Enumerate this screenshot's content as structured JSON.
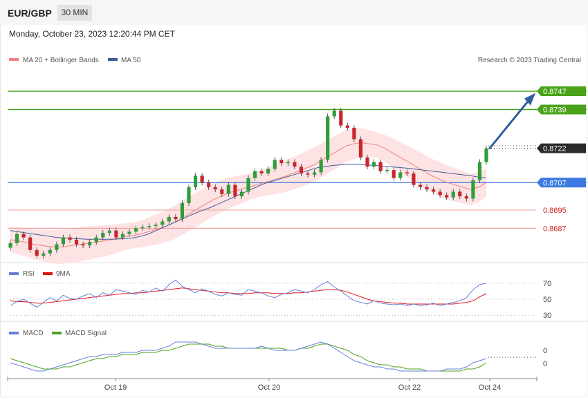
{
  "header": {
    "symbol": "EUR/GBP",
    "timeframe": "30 MIN",
    "timestamp": "Monday, October 23, 2023 12:20:44 PM CET"
  },
  "legend": {
    "ma20": "MA 20 + Bollinger Bands",
    "ma50": "MA 50",
    "copyright": "Research © 2023 Trading Central"
  },
  "colors": {
    "candle_up": "#2f9d3a",
    "candle_down": "#c9252b",
    "ma20": "#f08080",
    "bollinger_fill": "#fde0e0",
    "ma50": "#3f5c9a",
    "resistance": "#4aa31a",
    "support": "#f5a3a3",
    "pivot": "#3b7be0",
    "current": "#2b2b2b",
    "arrow": "#2f5d9e",
    "rsi": "#6680d8",
    "rsi_ma": "#e0141a",
    "macd": "#6680d8",
    "macd_signal": "#4aa31a"
  },
  "chart_data": {
    "type": "candlestick",
    "price_axis": {
      "ylim": [
        0.86735,
        0.87582
      ]
    },
    "x_axis": {
      "tick_labels": [
        "Oct 19",
        "Oct 20",
        "Oct 22",
        "Oct 24"
      ]
    },
    "levels": [
      {
        "value": 0.8747,
        "label": "0.8747",
        "kind": "resistance"
      },
      {
        "value": 0.8739,
        "label": "0.8739",
        "kind": "resistance"
      },
      {
        "value": 0.8722,
        "label": "0.8722",
        "kind": "current"
      },
      {
        "value": 0.8707,
        "label": "0.8707",
        "kind": "pivot"
      },
      {
        "value": 0.8695,
        "label": "0.8695",
        "kind": "support"
      },
      {
        "value": 0.8687,
        "label": "0.8687",
        "kind": "support"
      }
    ],
    "forecast_arrow": {
      "from": 0.8722,
      "to": 0.8745
    },
    "close": [
      0.86805,
      0.86845,
      0.8683,
      0.86775,
      0.8675,
      0.8676,
      0.86775,
      0.868,
      0.8683,
      0.8682,
      0.868,
      0.86795,
      0.8681,
      0.8683,
      0.8685,
      0.8686,
      0.8683,
      0.86845,
      0.86855,
      0.8687,
      0.86875,
      0.8688,
      0.86885,
      0.869,
      0.8692,
      0.8691,
      0.8698,
      0.8705,
      0.871,
      0.8707,
      0.8705,
      0.8704,
      0.8702,
      0.8706,
      0.8701,
      0.8703,
      0.8709,
      0.8712,
      0.8711,
      0.8713,
      0.8717,
      0.87155,
      0.8716,
      0.8714,
      0.8711,
      0.87105,
      0.87115,
      0.8717,
      0.8736,
      0.87385,
      0.8732,
      0.8731,
      0.8726,
      0.8718,
      0.8714,
      0.8716,
      0.8712,
      0.87125,
      0.8709,
      0.87115,
      0.8711,
      0.8706,
      0.8705,
      0.8704,
      0.8703,
      0.87015,
      0.87005,
      0.8703,
      0.8701,
      0.87,
      0.8708,
      0.8716,
      0.8722
    ],
    "ma20": [
      0.8682,
      0.86815,
      0.86808,
      0.868,
      0.86795,
      0.8679,
      0.86788,
      0.8679,
      0.86795,
      0.868,
      0.86805,
      0.8681,
      0.86815,
      0.8682,
      0.86828,
      0.86835,
      0.8684,
      0.86848,
      0.86858,
      0.86868,
      0.8688,
      0.86895,
      0.86915,
      0.86935,
      0.86955,
      0.86975,
      0.86995,
      0.8701,
      0.87025,
      0.87035,
      0.87045,
      0.87055,
      0.87065,
      0.87075,
      0.87085,
      0.87095,
      0.87108,
      0.8712,
      0.87135,
      0.8715,
      0.8717,
      0.8719,
      0.8721,
      0.8723,
      0.8724,
      0.87245,
      0.8724,
      0.87235,
      0.8722,
      0.872,
      0.8718,
      0.8716,
      0.8714,
      0.8712,
      0.871,
      0.87085,
      0.8707,
      0.8706,
      0.8705,
      0.8704,
      0.8705,
      0.8707
    ],
    "ma50": [
      0.8686,
      0.86855,
      0.8685,
      0.86845,
      0.8684,
      0.86835,
      0.8683,
      0.86828,
      0.86826,
      0.86824,
      0.86822,
      0.86822,
      0.86822,
      0.86822,
      0.86823,
      0.86825,
      0.86828,
      0.86835,
      0.86845,
      0.8686,
      0.86875,
      0.8689,
      0.86905,
      0.8692,
      0.86935,
      0.86948,
      0.8696,
      0.86975,
      0.8699,
      0.87005,
      0.8702,
      0.87035,
      0.8705,
      0.87065,
      0.87075,
      0.87085,
      0.87095,
      0.87105,
      0.87115,
      0.87125,
      0.87135,
      0.8714,
      0.87145,
      0.87148,
      0.8715,
      0.8715,
      0.87148,
      0.87146,
      0.87144,
      0.8714,
      0.87138,
      0.87135,
      0.87132,
      0.87128,
      0.87124,
      0.8712,
      0.87116,
      0.87112,
      0.87108,
      0.87104,
      0.871,
      0.87094,
      0.8709
    ],
    "rsi": {
      "ticks": [
        70,
        50,
        30
      ],
      "ylim": [
        25,
        75
      ],
      "rsi": [
        42,
        47,
        50,
        45,
        40,
        46,
        52,
        48,
        55,
        51,
        50,
        54,
        57,
        52,
        58,
        55,
        62,
        60,
        58,
        56,
        61,
        59,
        64,
        60,
        68,
        74,
        66,
        62,
        58,
        63,
        60,
        56,
        54,
        58,
        56,
        55,
        62,
        60,
        58,
        54,
        52,
        56,
        58,
        62,
        60,
        58,
        62,
        68,
        72,
        65,
        60,
        54,
        48,
        46,
        44,
        48,
        45,
        44,
        43,
        44,
        42,
        44,
        42,
        43,
        45,
        42,
        44,
        46,
        48,
        52,
        62,
        68,
        70
      ],
      "ma9": [
        48,
        47,
        47,
        46,
        45,
        45,
        46,
        47,
        48,
        49,
        50,
        51,
        52,
        53,
        54,
        55,
        56,
        57,
        57,
        58,
        58,
        59,
        60,
        61,
        62,
        63,
        64,
        63,
        62,
        61,
        60,
        59,
        58,
        58,
        57,
        57,
        57,
        58,
        58,
        58,
        57,
        57,
        57,
        58,
        58,
        59,
        60,
        61,
        62,
        62,
        61,
        59,
        56,
        53,
        50,
        48,
        47,
        46,
        45,
        45,
        44,
        44,
        44,
        44,
        44,
        44,
        44,
        44,
        45,
        46,
        48,
        53,
        57
      ]
    },
    "macd": {
      "ticks": [
        0,
        0
      ],
      "ylim": [
        -0.0009,
        0.0009
      ],
      "macd": [
        -0.0002,
        -0.0003,
        -0.0004,
        -0.0005,
        -0.0006,
        -0.0006,
        -0.0005,
        -0.0004,
        -0.0003,
        -0.0002,
        -0.0001,
        0.0,
        0.0001,
        0.0001,
        0.0002,
        0.0002,
        0.0002,
        0.0003,
        0.0003,
        0.0003,
        0.0004,
        0.0004,
        0.0004,
        0.0005,
        0.0006,
        0.0008,
        0.0008,
        0.0008,
        0.0008,
        0.0007,
        0.0006,
        0.0005,
        0.0005,
        0.0005,
        0.0005,
        0.0005,
        0.0005,
        0.0005,
        0.0006,
        0.0005,
        0.0004,
        0.0004,
        0.0004,
        0.0004,
        0.0005,
        0.0006,
        0.0007,
        0.0008,
        0.0007,
        0.0005,
        0.0003,
        0.0001,
        -0.0001,
        -0.0002,
        -0.0003,
        -0.0004,
        -0.0004,
        -0.0005,
        -0.0005,
        -0.0006,
        -0.0006,
        -0.0006,
        -0.0006,
        -0.0006,
        -0.0006,
        -0.0006,
        -0.0005,
        -0.0005,
        -0.0005,
        -0.0004,
        -0.0002,
        -0.0001,
        0.0
      ],
      "signal": [
        0.0,
        -0.0001,
        -0.0002,
        -0.0003,
        -0.0004,
        -0.0005,
        -0.0005,
        -0.0005,
        -0.0004,
        -0.0004,
        -0.0003,
        -0.0002,
        -0.0001,
        0.0,
        0.0,
        0.0001,
        0.0001,
        0.0002,
        0.0002,
        0.0002,
        0.0003,
        0.0003,
        0.0003,
        0.0004,
        0.0004,
        0.0005,
        0.0006,
        0.0007,
        0.0007,
        0.0007,
        0.0007,
        0.0006,
        0.0006,
        0.0005,
        0.0005,
        0.0005,
        0.0005,
        0.0005,
        0.0005,
        0.0005,
        0.0005,
        0.0005,
        0.0004,
        0.0004,
        0.0005,
        0.0005,
        0.0006,
        0.0007,
        0.0007,
        0.0006,
        0.0005,
        0.0004,
        0.0002,
        0.0001,
        -0.0001,
        -0.0002,
        -0.0003,
        -0.0003,
        -0.0004,
        -0.0004,
        -0.0005,
        -0.0005,
        -0.0005,
        -0.0006,
        -0.0006,
        -0.0006,
        -0.0006,
        -0.0006,
        -0.0006,
        -0.0005,
        -0.0005,
        -0.0004,
        -0.0002
      ]
    }
  },
  "rsi_legend": {
    "rsi": "RSI",
    "ma": "9MA"
  },
  "macd_legend": {
    "macd": "MACD",
    "signal": "MACD Signal"
  }
}
